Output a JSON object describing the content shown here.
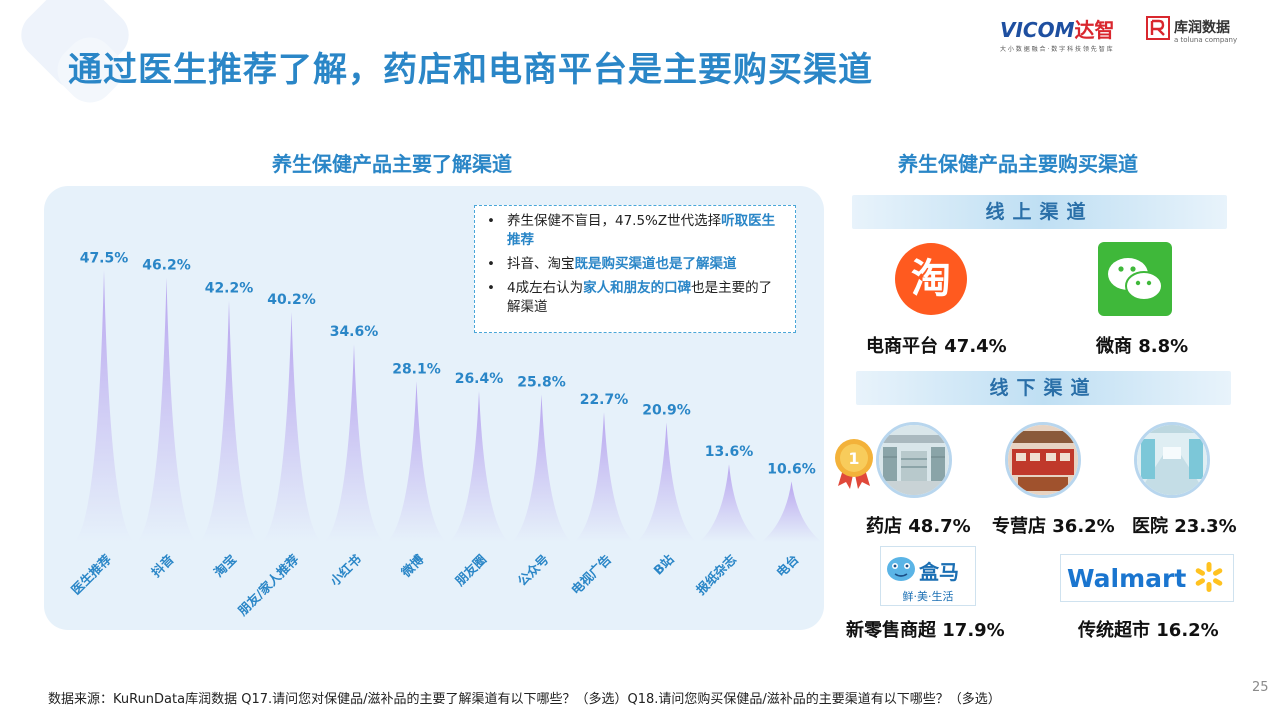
{
  "title": "通过医生推荐了解，药店和电商平台是主要购买渠道",
  "logos": {
    "vitom_brand": "VICOM",
    "vitom_cn": "达智",
    "vitom_tagline": "大 小 数 据 融 合 · 数 字 科 技 领 先 智 库",
    "kurun_cn": "库润数据",
    "kurun_en": "a toluna company"
  },
  "left_section_title": "养生保健产品主要了解渠道",
  "right_section_title": "养生保健产品主要购买渠道",
  "notes": [
    {
      "plain": "养生保健不盲目，47.5%Z世代选择",
      "highlight": "听取医生推荐",
      "after": ""
    },
    {
      "plain": "抖音、淘宝",
      "highlight": "既是购买渠道也是了解渠道",
      "after": ""
    },
    {
      "plain": "4成左右认为",
      "highlight": "家人和朋友的口碑",
      "after": "也是主要的了解渠道"
    }
  ],
  "chart_data": {
    "type": "bar",
    "categories": [
      "医生推荐",
      "抖音",
      "淘宝",
      "朋友/家人推荐",
      "小红书",
      "微博",
      "朋友圈",
      "公众号",
      "电视广告",
      "B站",
      "报纸杂志",
      "电台"
    ],
    "values": [
      47.5,
      46.2,
      42.2,
      40.2,
      34.6,
      28.1,
      26.4,
      25.8,
      22.7,
      20.9,
      13.6,
      10.6
    ],
    "value_labels": [
      "47.5%",
      "46.2%",
      "42.2%",
      "40.2%",
      "34.6%",
      "28.1%",
      "26.4%",
      "25.8%",
      "22.7%",
      "20.9%",
      "13.6%",
      "10.6%"
    ],
    "title": "养生保健产品主要了解渠道",
    "xlabel": "",
    "ylabel": "",
    "ylim": [
      0,
      50
    ],
    "grid": false,
    "colors": {
      "top": "#b9a6ef",
      "bottom": "#e6f1fa",
      "label": "#2a86c7"
    }
  },
  "online": {
    "band_label": "线上渠道",
    "channels": [
      {
        "label": "电商平台 47.4%",
        "icon": "taobao-icon"
      },
      {
        "label": "微商 8.8%",
        "icon": "wechat-icon"
      }
    ]
  },
  "offline": {
    "band_label": "线下渠道",
    "channels": [
      {
        "label": "药店 48.7%",
        "icon": "pharmacy-photo"
      },
      {
        "label": "专营店 36.2%",
        "icon": "store-photo"
      },
      {
        "label": "医院 23.3%",
        "icon": "hospital-photo"
      },
      {
        "label": "新零售商超 17.9%",
        "icon": "hema-logo",
        "logo_text": "盒马",
        "logo_sub": "鲜·美·生活"
      },
      {
        "label": "传统超市 16.2%",
        "icon": "walmart-logo",
        "logo_text": "Walmart"
      }
    ],
    "badge": "1"
  },
  "footnote": "数据来源：KuRunData库润数据 Q17.请问您对保健品/滋补品的主要了解渠道有以下哪些？（多选）Q18.请问您购买保健品/滋补品的主要渠道有以下哪些？（多选）",
  "page_number": "25"
}
